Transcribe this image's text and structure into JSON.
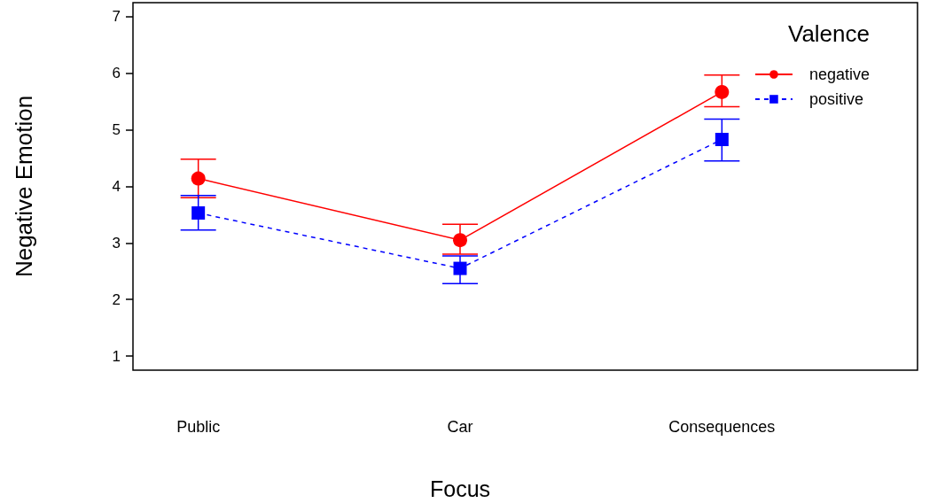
{
  "chart_data": {
    "type": "line",
    "xlabel": "Focus",
    "ylabel": "Negative Emotion",
    "legend_title": "Valence",
    "categories": [
      "Public",
      "Car",
      "Consequences"
    ],
    "series": [
      {
        "name": "negative",
        "color": "#ff0000",
        "values": [
          4.14,
          3.05,
          5.67
        ],
        "errors": [
          [
            3.8,
            4.48
          ],
          [
            2.8,
            3.33
          ],
          [
            5.41,
            5.97
          ]
        ],
        "marker": "circle",
        "line_style": "solid"
      },
      {
        "name": "positive",
        "color": "#0000ff",
        "values": [
          3.53,
          2.55,
          4.83
        ],
        "errors": [
          [
            3.23,
            3.84
          ],
          [
            2.28,
            2.77
          ],
          [
            4.45,
            5.19
          ]
        ],
        "marker": "square",
        "line_style": "dashed"
      }
    ],
    "ylim": [
      0.75,
      7.25
    ],
    "yticks": [
      1,
      2,
      3,
      4,
      5,
      6,
      7
    ],
    "grid": false,
    "legend": "top right"
  }
}
